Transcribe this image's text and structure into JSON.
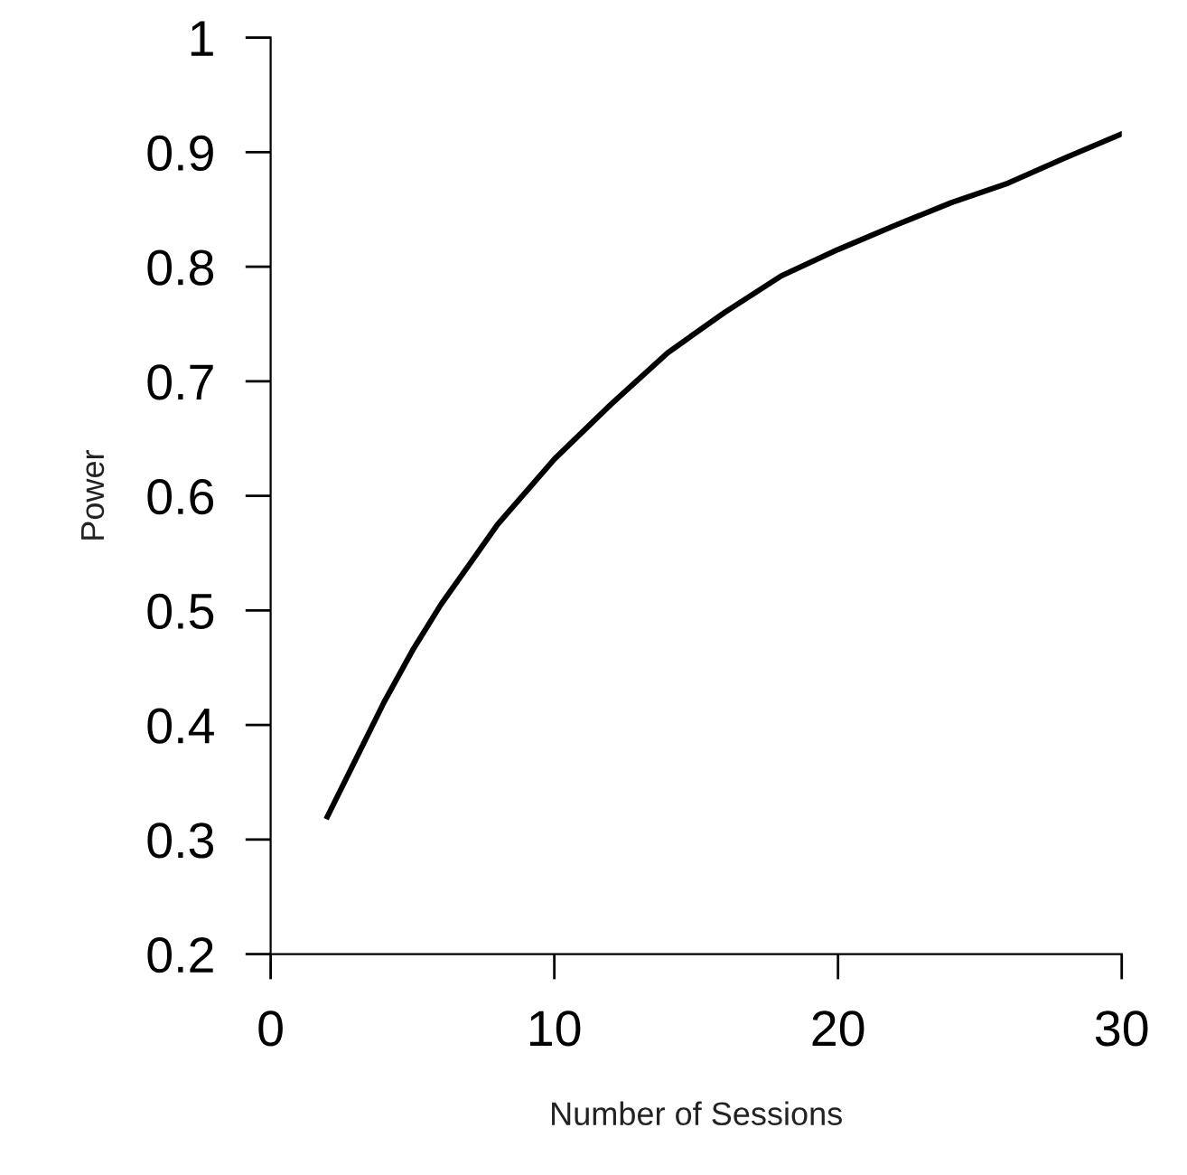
{
  "chart_data": {
    "type": "line",
    "xlabel": "Number of Sessions",
    "ylabel": "Power",
    "x": [
      2,
      3,
      4,
      5,
      6,
      7,
      8,
      10,
      12,
      14,
      16,
      18,
      20,
      22,
      24,
      26,
      28,
      30
    ],
    "series": [
      {
        "color": "#000000",
        "values": [
          0.32,
          0.37,
          0.42,
          0.465,
          0.505,
          0.54,
          0.575,
          0.632,
          0.68,
          0.725,
          0.76,
          0.792,
          0.815,
          0.836,
          0.856,
          0.873,
          0.895,
          0.916
        ]
      }
    ],
    "xlim": [
      0,
      30
    ],
    "ylim": [
      0.2,
      1
    ],
    "xticks": [
      0,
      10,
      20,
      30
    ],
    "yticks": [
      0.2,
      0.3,
      0.4,
      0.5,
      0.6,
      0.7,
      0.8,
      0.9,
      1
    ],
    "grid": false,
    "marker": "none",
    "line_style": "solid"
  }
}
